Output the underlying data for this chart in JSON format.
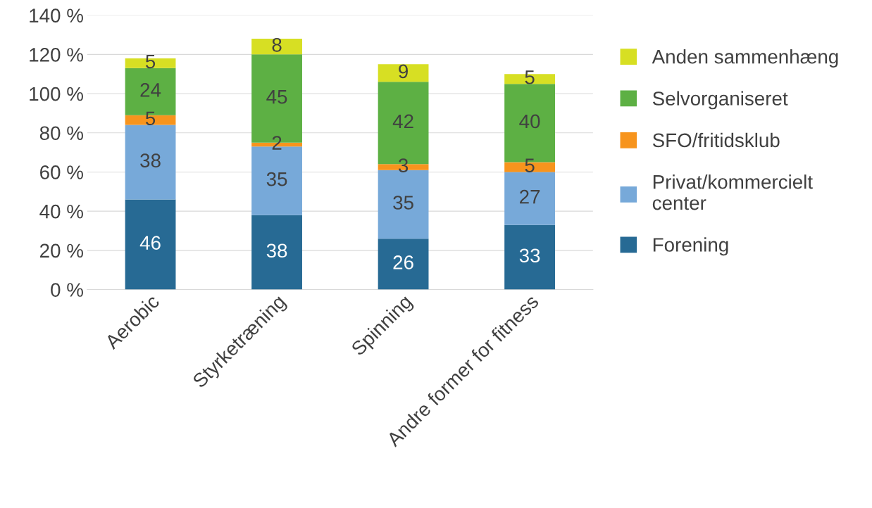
{
  "chart_data": {
    "type": "bar",
    "stacked": true,
    "categories": [
      "Aerobic",
      "Styrketræning",
      "Spinning",
      "Andre former for fitness"
    ],
    "series": [
      {
        "name": "Forening",
        "color": "#276a94",
        "values": [
          46,
          38,
          26,
          33
        ]
      },
      {
        "name": "Privat/kommercielt center",
        "color": "#77a9d9",
        "values": [
          38,
          35,
          35,
          27
        ]
      },
      {
        "name": "SFO/fritidsklub",
        "color": "#f7941d",
        "values": [
          5,
          2,
          3,
          5
        ]
      },
      {
        "name": "Selvorganiseret",
        "color": "#5db044",
        "values": [
          24,
          45,
          42,
          40
        ]
      },
      {
        "name": "Anden sammenhæng",
        "color": "#d7df23",
        "values": [
          5,
          8,
          9,
          5
        ]
      }
    ],
    "ylim": [
      0,
      140
    ],
    "yticks": [
      {
        "value": 0,
        "label": "0 %"
      },
      {
        "value": 20,
        "label": "20 %"
      },
      {
        "value": 40,
        "label": "40 %"
      },
      {
        "value": 60,
        "label": "60 %"
      },
      {
        "value": 80,
        "label": "80 %"
      },
      {
        "value": 100,
        "label": "100 %"
      },
      {
        "value": 120,
        "label": "120 %"
      },
      {
        "value": 140,
        "label": "140 %"
      }
    ],
    "grid": "y",
    "legend": "right",
    "data_labels": true
  }
}
